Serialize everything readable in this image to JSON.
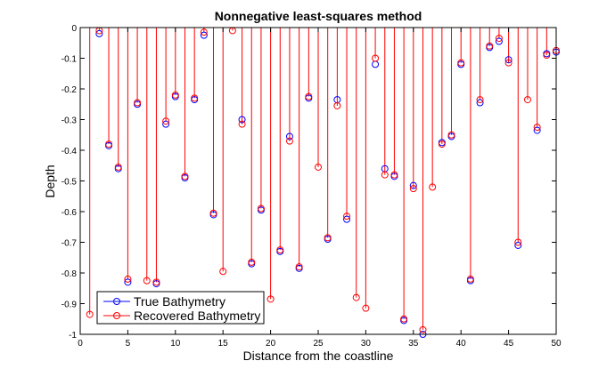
{
  "chart_data": {
    "type": "scatter",
    "title": "Nonnegative least-squares method",
    "xlabel": "Distance from the coastline",
    "ylabel": "Depth",
    "xlim": [
      0,
      50
    ],
    "ylim": [
      -1,
      0
    ],
    "xticks": [
      "0",
      "5",
      "10",
      "15",
      "20",
      "25",
      "30",
      "35",
      "40",
      "45",
      "50"
    ],
    "yticks": [
      "0",
      "-0.1",
      "-0.2",
      "-0.3",
      "-0.4",
      "-0.5",
      "-0.6",
      "-0.7",
      "-0.8",
      "-0.9",
      "-1"
    ],
    "grid": false,
    "legend_position": "bottom-left",
    "series": [
      {
        "name": "True Bathymetry",
        "color": "#0000ff",
        "marker": "circle",
        "x": [
          2,
          3,
          4,
          5,
          6,
          8,
          9,
          10,
          11,
          12,
          13,
          14,
          17,
          18,
          19,
          21,
          22,
          23,
          24,
          26,
          27,
          28,
          31,
          32,
          33,
          34,
          35,
          36,
          38,
          39,
          40,
          41,
          42,
          43,
          44,
          45,
          46,
          48,
          49,
          50
        ],
        "y": [
          -0.02,
          -0.385,
          -0.46,
          -0.83,
          -0.25,
          -0.835,
          -0.315,
          -0.225,
          -0.49,
          -0.235,
          -0.025,
          -0.61,
          -0.3,
          -0.77,
          -0.595,
          -0.73,
          -0.355,
          -0.785,
          -0.23,
          -0.69,
          -0.235,
          -0.625,
          -0.12,
          -0.46,
          -0.485,
          -0.955,
          -0.515,
          -1.0,
          -0.375,
          -0.355,
          -0.12,
          -0.825,
          -0.245,
          -0.065,
          -0.045,
          -0.105,
          -0.71,
          -0.335,
          -0.085,
          -0.08
        ]
      },
      {
        "name": "Recovered Bathymetry",
        "color": "#ff0000",
        "marker": "circle",
        "stem": true,
        "x": [
          1,
          2,
          3,
          4,
          5,
          6,
          7,
          8,
          9,
          10,
          11,
          12,
          13,
          14,
          15,
          16,
          17,
          18,
          19,
          20,
          21,
          22,
          23,
          24,
          25,
          26,
          27,
          28,
          29,
          30,
          31,
          32,
          33,
          34,
          35,
          36,
          37,
          38,
          39,
          40,
          41,
          42,
          43,
          44,
          45,
          46,
          47,
          48,
          49,
          50
        ],
        "y": [
          -0.935,
          -0.01,
          -0.38,
          -0.455,
          -0.82,
          -0.245,
          -0.825,
          -0.83,
          -0.305,
          -0.22,
          -0.485,
          -0.23,
          -0.015,
          -0.605,
          -0.795,
          -0.01,
          -0.315,
          -0.765,
          -0.59,
          -0.885,
          -0.725,
          -0.37,
          -0.78,
          -0.225,
          -0.455,
          -0.685,
          -0.255,
          -0.615,
          -0.88,
          -0.915,
          -0.1,
          -0.48,
          -0.48,
          -0.95,
          -0.525,
          -0.985,
          -0.52,
          -0.38,
          -0.35,
          -0.115,
          -0.82,
          -0.235,
          -0.06,
          -0.035,
          -0.115,
          -0.7,
          -0.235,
          -0.325,
          -0.09,
          -0.075
        ]
      }
    ]
  }
}
